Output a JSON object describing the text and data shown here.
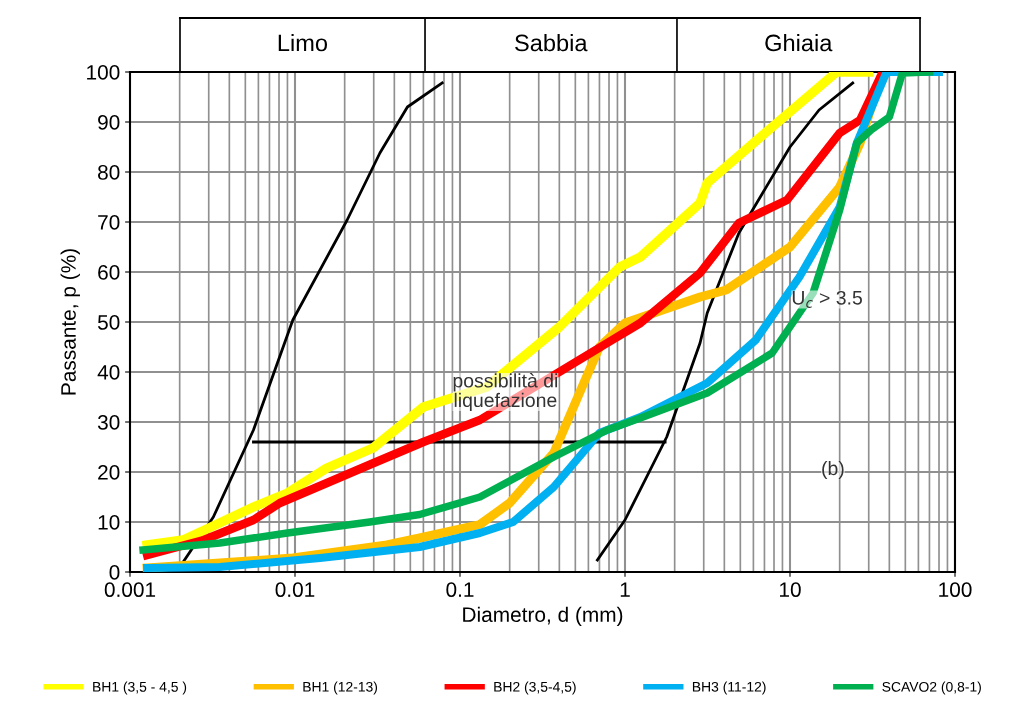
{
  "chart_data": {
    "type": "line",
    "xlabel": "Diametro, d (mm)",
    "ylabel": "Passante, p (%)",
    "log": "x",
    "grid": true,
    "legend": "bottom",
    "marker": "none",
    "line_style": "solid",
    "xlim": [
      0.001,
      100
    ],
    "xticks": [
      0.001,
      0.01,
      0.1,
      1,
      10,
      100
    ],
    "ylim": [
      0,
      100
    ],
    "yticks": [
      0,
      10,
      20,
      30,
      40,
      50,
      60,
      70,
      80,
      90,
      100
    ],
    "series": [
      {
        "name": "BH1 (3,5 - 4,5 )",
        "color": "#ffff00",
        "x": [
          0.00127,
          0.0021,
          0.0031,
          0.0056,
          0.009,
          0.0156,
          0.0297,
          0.06,
          0.145,
          0.4,
          0.93,
          1.24,
          2.85,
          3.15,
          7.8,
          19.2,
          30
        ],
        "values": [
          5.4,
          6.4,
          9,
          13,
          15.8,
          20.8,
          24.8,
          33,
          37,
          49,
          61,
          63,
          73.8,
          77.8,
          89,
          100,
          100
        ]
      },
      {
        "name": "BH1 (12-13)",
        "color": "#ffc000",
        "x": [
          0.00127,
          0.0097,
          0.036,
          0.057,
          0.132,
          0.2,
          0.37,
          0.53,
          0.7,
          1.0,
          2.85,
          4.1,
          10,
          20,
          26.6,
          35
        ],
        "values": [
          0.8,
          2.8,
          5.4,
          6.8,
          9.5,
          13.8,
          23.8,
          35.8,
          45,
          49.8,
          55,
          56.4,
          65,
          77,
          85.8,
          98.4
        ]
      },
      {
        "name": "BH2 (3,5-4,5)",
        "color": "#ff0000",
        "x": [
          0.00127,
          0.0028,
          0.0056,
          0.0081,
          0.0156,
          0.03,
          0.06,
          0.132,
          0.78,
          1.24,
          2.85,
          4.9,
          9.6,
          20,
          26.6,
          36.5
        ],
        "values": [
          3.4,
          6.4,
          10.4,
          13.8,
          17.8,
          21.8,
          26,
          30.4,
          45.8,
          49.8,
          59.8,
          69.8,
          74.4,
          87.8,
          90.4,
          100
        ]
      },
      {
        "name": "BH3 (11-12)",
        "color": "#00b0f0",
        "x": [
          0.00127,
          0.0035,
          0.0142,
          0.057,
          0.132,
          0.21,
          0.37,
          0.7,
          1.24,
          3.15,
          6.2,
          11.4,
          20,
          25.4,
          38.5,
          80
        ],
        "values": [
          0.8,
          1,
          2.8,
          5,
          7.8,
          10,
          17,
          27.8,
          31,
          37.8,
          46.4,
          59,
          73,
          85.8,
          100,
          100
        ]
      },
      {
        "name": "SCAVO2 (0,8-1)",
        "color": "#00b050",
        "x": [
          0.0012,
          0.0035,
          0.009,
          0.0284,
          0.057,
          0.132,
          0.37,
          0.78,
          1.24,
          3.15,
          7.8,
          13.8,
          20,
          25.4,
          31,
          40,
          48,
          70
        ],
        "values": [
          4.4,
          5.8,
          7.8,
          10,
          11.5,
          15,
          23,
          28.4,
          30.8,
          35.8,
          43.8,
          55.8,
          72.4,
          85.8,
          88.4,
          91,
          99.8,
          100
        ]
      },
      {
        "color": "#000000",
        "x": [
          0.0021,
          0.0032,
          0.0056,
          0.0097,
          0.0207,
          0.0327,
          0.048,
          0.078
        ],
        "values": [
          2,
          11,
          28.4,
          50.4,
          70.4,
          83.8,
          93,
          97.8
        ]
      },
      {
        "color": "#000000",
        "x": [
          0.68,
          1.0,
          1.79,
          2.85,
          3.15,
          4.9,
          10,
          15,
          24
        ],
        "values": [
          2.4,
          10.4,
          27,
          45.8,
          51.8,
          67.8,
          85,
          92.4,
          97.8
        ]
      },
      {
        "color": "#000000",
        "x": [
          0.0056,
          1.75
        ],
        "values": [
          26,
          26
        ]
      }
    ],
    "annotations": [
      "Limo",
      "Sabbia",
      "Ghiaia",
      "possibilità di\nliquefazione",
      "U$_{c}$ > 3.5",
      "(b)"
    ]
  }
}
